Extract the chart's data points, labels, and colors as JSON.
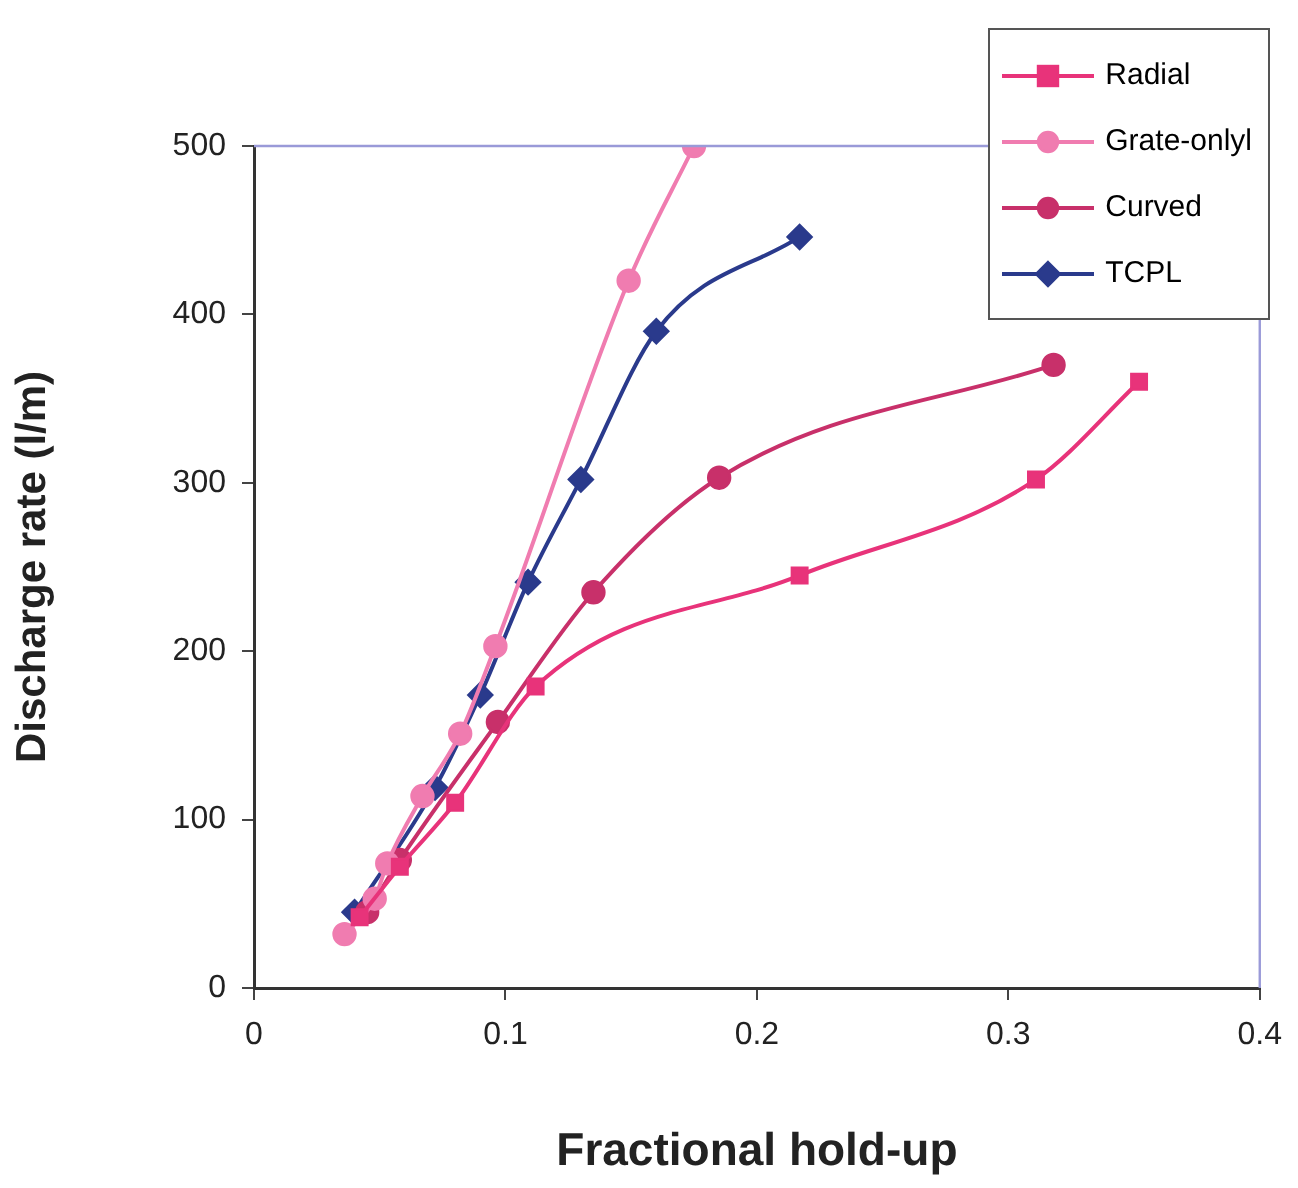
{
  "chart_data": {
    "type": "line",
    "xlabel": "Fractional hold-up",
    "ylabel": "Discharge rate (l/m)",
    "xlim": [
      0,
      0.4
    ],
    "xticks": [
      0,
      0.1,
      0.2,
      0.3,
      0.4
    ],
    "ylim": [
      0,
      500
    ],
    "yticks": [
      0,
      100,
      200,
      300,
      400,
      500
    ],
    "legend": "top right",
    "series": [
      {
        "name": "Radial",
        "color": "#e8337a",
        "marker": "square",
        "x": [
          0.042,
          0.058,
          0.08,
          0.112,
          0.217,
          0.311,
          0.352
        ],
        "values": [
          42,
          72,
          110,
          179,
          245,
          302,
          360
        ]
      },
      {
        "name": "Grate-onlyl",
        "color": "#f07cb0",
        "marker": "circle",
        "x": [
          0.036,
          0.048,
          0.053,
          0.067,
          0.082,
          0.096,
          0.149,
          0.175
        ],
        "values": [
          32,
          53,
          74,
          114,
          151,
          203,
          420,
          500
        ]
      },
      {
        "name": "Curved",
        "color": "#c8306a",
        "marker": "circle",
        "x": [
          0.045,
          0.058,
          0.097,
          0.135,
          0.185,
          0.318
        ],
        "values": [
          45,
          76,
          158,
          235,
          303,
          370
        ]
      },
      {
        "name": "TCPL",
        "color": "#2a3a8c",
        "marker": "diamond",
        "x": [
          0.04,
          0.072,
          0.09,
          0.109,
          0.13,
          0.16,
          0.217
        ],
        "values": [
          45,
          119,
          174,
          241,
          302,
          390,
          446
        ]
      }
    ]
  }
}
